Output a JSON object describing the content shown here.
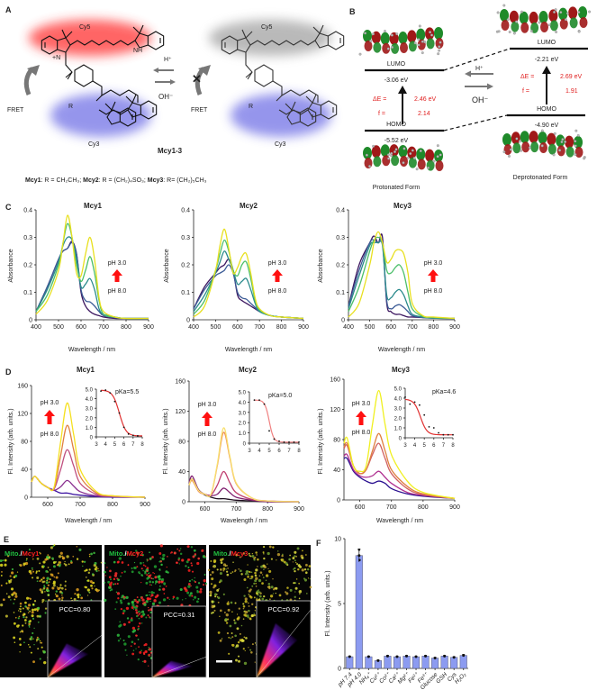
{
  "panel_labels": {
    "a": "A",
    "b": "B",
    "c": "C",
    "d": "D",
    "e": "E",
    "f": "F"
  },
  "panel_a": {
    "cy5": "Cy5",
    "cy3": "Cy3",
    "r": "R",
    "n_plus": "+N",
    "n": "N",
    "nh": "NH",
    "fret": "FRET",
    "h_plus": "H⁺",
    "oh_minus": "OH⁻",
    "mcy_name": "Mcy1-3",
    "caption": [
      {
        "name": "Mcy1",
        "text": ": R = CH₂CH₃; "
      },
      {
        "name": "Mcy2",
        "text": ": R = (CH₂)₄SO₃; "
      },
      {
        "name": "Mcy3",
        "text": ": R=  (CH₂)₅CH₃"
      }
    ],
    "colors": {
      "cy5_glow": "#ff3030",
      "cy3_glow": "#5050e0",
      "off_glow": "#808080"
    }
  },
  "panel_b": {
    "lumo": "LUMO",
    "homo": "HOMO",
    "h_plus": "H⁺",
    "oh_minus": "OH⁻",
    "protonated": {
      "label": "Protonated Form",
      "lumo_energy": "-3.06 eV",
      "homo_energy": "-5.52 eV",
      "delta_e_label": "ΔE =",
      "delta_e": "2.46 eV",
      "f_label": "f =",
      "f": "2.14"
    },
    "deprotonated": {
      "label": "Deprotonated Form",
      "lumo_energy": "-2.21 eV",
      "homo_energy": "-4.90 eV",
      "delta_e_label": "ΔE =",
      "delta_e": "2.69 eV",
      "f_label": "f =",
      "f": "1.91"
    },
    "colors": {
      "lobe_pos": "#a01818",
      "lobe_neg": "#1f8a2a",
      "values": "#e02020"
    }
  },
  "panel_c": {
    "ph_high": "pH 3.0",
    "ph_low": "pH 8.0"
  },
  "panel_d": {
    "ph_high": "pH 3.0",
    "ph_low": "pH 8.0"
  },
  "panel_e": {
    "images": [
      {
        "mito": "Mito.",
        "sep": "/",
        "probe": "Mcy1",
        "pcc": "PCC=0.80"
      },
      {
        "mito": "Mito.",
        "sep": "/",
        "probe": "Mcy2",
        "pcc": "PCC=0.31"
      },
      {
        "mito": "Mito.",
        "sep": "/",
        "probe": "Mcy3",
        "pcc": "PCC=0.92"
      }
    ],
    "colors": {
      "mito": "#20c040",
      "probe": "#ff2020"
    }
  },
  "chart_data": [
    {
      "type": "line",
      "title": "Mcy1",
      "xlabel": "Wavelength / nm",
      "ylabel": "Absorbance",
      "xlim": [
        400,
        900
      ],
      "ylim": [
        0,
        0.4
      ],
      "xticks": [
        400,
        500,
        600,
        700,
        800,
        900
      ],
      "yticks": [
        0,
        0.1,
        0.2,
        0.3,
        0.4
      ],
      "yticklabels": [
        "0",
        "0.1",
        "0.2",
        "0.3",
        "0.4"
      ],
      "x": [
        400,
        450,
        500,
        520,
        540,
        560,
        580,
        600,
        620,
        640,
        660,
        680,
        700,
        750,
        800,
        900
      ],
      "series": [
        {
          "color": "#e8e020",
          "values": [
            0.02,
            0.07,
            0.18,
            0.28,
            0.38,
            0.3,
            0.17,
            0.16,
            0.24,
            0.3,
            0.22,
            0.08,
            0.03,
            0.01,
            0.005,
            0.005
          ]
        },
        {
          "color": "#4cbf6a",
          "values": [
            0.03,
            0.09,
            0.2,
            0.28,
            0.35,
            0.3,
            0.2,
            0.14,
            0.18,
            0.23,
            0.17,
            0.07,
            0.02,
            0.01,
            0.005,
            0.005
          ]
        },
        {
          "color": "#2a8a8c",
          "values": [
            0.03,
            0.11,
            0.21,
            0.27,
            0.3,
            0.29,
            0.22,
            0.12,
            0.13,
            0.15,
            0.11,
            0.04,
            0.02,
            0.01,
            0.005,
            0.005
          ]
        },
        {
          "color": "#3b5b96",
          "values": [
            0.03,
            0.12,
            0.22,
            0.25,
            0.26,
            0.28,
            0.24,
            0.11,
            0.07,
            0.065,
            0.05,
            0.03,
            0.015,
            0.008,
            0.005,
            0.005
          ]
        },
        {
          "color": "#3d1760",
          "values": [
            0.03,
            0.12,
            0.22,
            0.25,
            0.26,
            0.285,
            0.24,
            0.1,
            0.05,
            0.03,
            0.02,
            0.015,
            0.01,
            0.005,
            0.005,
            0.005
          ]
        }
      ]
    },
    {
      "type": "line",
      "title": "Mcy2",
      "xlabel": "Wavelength / nm",
      "ylabel": "Absorbance",
      "xlim": [
        400,
        900
      ],
      "ylim": [
        0,
        0.4
      ],
      "xticks": [
        400,
        500,
        600,
        700,
        800,
        900
      ],
      "yticks": [
        0,
        0.1,
        0.2,
        0.3,
        0.4
      ],
      "yticklabels": [
        "0",
        "0.1",
        "0.2",
        "0.3",
        "0.4"
      ],
      "x": [
        400,
        450,
        500,
        520,
        540,
        560,
        580,
        600,
        620,
        640,
        660,
        680,
        700,
        750,
        800,
        900
      ],
      "series": [
        {
          "color": "#e8e020",
          "values": [
            0.01,
            0.05,
            0.18,
            0.27,
            0.33,
            0.26,
            0.17,
            0.19,
            0.23,
            0.24,
            0.17,
            0.08,
            0.04,
            0.015,
            0.01,
            0.005
          ]
        },
        {
          "color": "#4cbf6a",
          "values": [
            0.02,
            0.07,
            0.18,
            0.24,
            0.29,
            0.25,
            0.18,
            0.16,
            0.2,
            0.21,
            0.15,
            0.07,
            0.035,
            0.015,
            0.01,
            0.005
          ]
        },
        {
          "color": "#2a8a8c",
          "values": [
            0.03,
            0.09,
            0.17,
            0.21,
            0.25,
            0.22,
            0.18,
            0.13,
            0.14,
            0.15,
            0.11,
            0.06,
            0.03,
            0.015,
            0.01,
            0.005
          ]
        },
        {
          "color": "#3b5b96",
          "values": [
            0.04,
            0.11,
            0.16,
            0.17,
            0.18,
            0.2,
            0.17,
            0.1,
            0.08,
            0.075,
            0.06,
            0.045,
            0.03,
            0.015,
            0.01,
            0.005
          ]
        },
        {
          "color": "#3d1760",
          "values": [
            0.04,
            0.12,
            0.17,
            0.19,
            0.2,
            0.22,
            0.18,
            0.09,
            0.07,
            0.06,
            0.05,
            0.04,
            0.03,
            0.015,
            0.01,
            0.005
          ]
        }
      ]
    },
    {
      "type": "line",
      "title": "Mcy3",
      "xlabel": "Wavelength / nm",
      "ylabel": "Absorbance",
      "xlim": [
        400,
        900
      ],
      "ylim": [
        0,
        0.4
      ],
      "xticks": [
        400,
        500,
        600,
        700,
        800,
        900
      ],
      "yticks": [
        0,
        0.1,
        0.2,
        0.3,
        0.4
      ],
      "yticklabels": [
        "0",
        "0.1",
        "0.2",
        "0.3",
        "0.4"
      ],
      "x": [
        400,
        450,
        500,
        520,
        540,
        560,
        580,
        600,
        620,
        640,
        660,
        680,
        700,
        750,
        800,
        900
      ],
      "series": [
        {
          "color": "#e8e020",
          "values": [
            0.01,
            0.06,
            0.2,
            0.28,
            0.32,
            0.28,
            0.21,
            0.22,
            0.25,
            0.255,
            0.24,
            0.17,
            0.06,
            0.015,
            0.01,
            0.005
          ]
        },
        {
          "color": "#4cbf6a",
          "values": [
            0.03,
            0.12,
            0.25,
            0.29,
            0.3,
            0.28,
            0.18,
            0.17,
            0.19,
            0.2,
            0.17,
            0.1,
            0.04,
            0.012,
            0.008,
            0.005
          ]
        },
        {
          "color": "#2a8a8c",
          "values": [
            0.04,
            0.16,
            0.27,
            0.28,
            0.28,
            0.27,
            0.09,
            0.08,
            0.1,
            0.11,
            0.09,
            0.05,
            0.02,
            0.01,
            0.006,
            0.005
          ]
        },
        {
          "color": "#3b5b96",
          "values": [
            0.05,
            0.18,
            0.28,
            0.29,
            0.28,
            0.28,
            0.07,
            0.04,
            0.05,
            0.055,
            0.045,
            0.03,
            0.015,
            0.008,
            0.006,
            0.005
          ]
        },
        {
          "color": "#3d1760",
          "values": [
            0.05,
            0.2,
            0.28,
            0.305,
            0.28,
            0.3,
            0.06,
            0.03,
            0.02,
            0.02,
            0.015,
            0.01,
            0.01,
            0.008,
            0.006,
            0.005
          ]
        }
      ]
    },
    {
      "type": "line",
      "title": "Mcy1",
      "xlabel": "Wavelength / nm",
      "ylabel": "Fl. Intensity (arb. units.)",
      "xlim": [
        550,
        900
      ],
      "ylim": [
        0,
        160
      ],
      "xticks": [
        600,
        700,
        800,
        900
      ],
      "yticks": [
        0,
        40,
        80,
        120,
        160
      ],
      "yticklabels": [
        "0",
        "40",
        "80",
        "120",
        "160"
      ],
      "x": [
        550,
        560,
        580,
        600,
        620,
        640,
        660,
        680,
        700,
        750,
        800,
        900
      ],
      "series": [
        {
          "color": "#f5e020",
          "values": [
            22,
            30,
            20,
            14,
            15,
            80,
            135,
            90,
            40,
            8,
            2,
            0
          ]
        },
        {
          "color": "#e08040",
          "values": [
            22,
            30,
            20,
            14,
            13,
            60,
            103,
            68,
            30,
            6,
            2,
            0
          ]
        },
        {
          "color": "#c05080",
          "values": [
            22,
            30,
            20,
            14,
            12,
            40,
            68,
            45,
            20,
            4,
            1,
            0
          ]
        },
        {
          "color": "#8a3090",
          "values": [
            22,
            30,
            20,
            14,
            10,
            15,
            24,
            16,
            8,
            2,
            1,
            0
          ]
        },
        {
          "color": "#3a10a0",
          "values": [
            22,
            30,
            20,
            14,
            10,
            6,
            6,
            4,
            3,
            1,
            0,
            0
          ]
        }
      ]
    },
    {
      "type": "line",
      "title": "Mcy2",
      "xlabel": "Wavelength / nm",
      "ylabel": "Fl. Intensity (arb. units.)",
      "xlim": [
        550,
        900
      ],
      "ylim": [
        0,
        160
      ],
      "xticks": [
        600,
        700,
        800,
        900
      ],
      "yticks": [
        0,
        40,
        80,
        120,
        160
      ],
      "yticklabels": [
        "0",
        "40",
        "80",
        "120",
        "160"
      ],
      "x": [
        550,
        560,
        580,
        600,
        620,
        640,
        660,
        680,
        700,
        750,
        800,
        900
      ],
      "series": [
        {
          "color": "#f8e070",
          "values": [
            22,
            30,
            15,
            10,
            10,
            50,
            98,
            60,
            25,
            5,
            1,
            0
          ]
        },
        {
          "color": "#f09050",
          "values": [
            22,
            28,
            14,
            10,
            10,
            48,
            92,
            58,
            24,
            5,
            1,
            0
          ]
        },
        {
          "color": "#c04070",
          "values": [
            22,
            30,
            14,
            10,
            9,
            22,
            40,
            25,
            12,
            3,
            1,
            0
          ]
        },
        {
          "color": "#802070",
          "values": [
            25,
            34,
            16,
            10,
            8,
            10,
            18,
            12,
            6,
            2,
            0,
            0
          ]
        },
        {
          "color": "#201020",
          "values": [
            22,
            30,
            16,
            9,
            6,
            4,
            4,
            3,
            2,
            1,
            0,
            0
          ]
        }
      ]
    },
    {
      "type": "line",
      "title": "Mcy3",
      "xlabel": "Wavelength / nm",
      "ylabel": "Fl. Intensity (arb. units.)",
      "xlim": [
        550,
        900
      ],
      "ylim": [
        0,
        160
      ],
      "xticks": [
        600,
        700,
        800,
        900
      ],
      "yticks": [
        0,
        40,
        80,
        120,
        160
      ],
      "yticklabels": [
        "0",
        "40",
        "80",
        "120",
        "160"
      ],
      "x": [
        550,
        560,
        580,
        600,
        620,
        640,
        660,
        680,
        700,
        750,
        800,
        900
      ],
      "series": [
        {
          "color": "#f0f020",
          "values": [
            75,
            82,
            45,
            38,
            45,
            100,
            145,
            100,
            60,
            25,
            10,
            2
          ]
        },
        {
          "color": "#e08040",
          "values": [
            70,
            75,
            45,
            35,
            40,
            65,
            88,
            65,
            40,
            18,
            8,
            2
          ]
        },
        {
          "color": "#d06060",
          "values": [
            68,
            72,
            45,
            35,
            40,
            60,
            75,
            55,
            35,
            15,
            7,
            2
          ]
        },
        {
          "color": "#b03090",
          "values": [
            58,
            60,
            40,
            32,
            30,
            32,
            38,
            30,
            22,
            10,
            6,
            2
          ]
        },
        {
          "color": "#2a1090",
          "values": [
            55,
            55,
            38,
            30,
            25,
            22,
            25,
            22,
            15,
            8,
            5,
            2
          ]
        }
      ]
    },
    {
      "type": "scatter",
      "annotation": "pKa=5.5",
      "pKa": 5.5,
      "xlim": [
        3,
        8
      ],
      "ylim": [
        0,
        5
      ],
      "xticks": [
        3,
        4,
        5,
        6,
        7,
        8
      ],
      "yticks": [
        0,
        1,
        2,
        3,
        4,
        5
      ],
      "yticklabels": [
        "0",
        "1.0",
        "2.0",
        "3.0",
        "4.0",
        "5.0"
      ],
      "x": [
        3.5,
        4,
        4.5,
        5,
        5.5,
        6,
        6.5,
        7,
        7.5
      ],
      "y": [
        4.8,
        4.9,
        4.6,
        3.7,
        2.5,
        1.0,
        0.3,
        0.15,
        0.1
      ],
      "fit_color": "#e03030"
    },
    {
      "type": "scatter",
      "annotation": "pKa=5.0",
      "pKa": 5.0,
      "xlim": [
        3,
        8
      ],
      "ylim": [
        0,
        5
      ],
      "xticks": [
        3,
        4,
        5,
        6,
        7,
        8
      ],
      "yticks": [
        0,
        1,
        2,
        3,
        4,
        5
      ],
      "yticklabels": [
        "0",
        "1.0",
        "2.0",
        "3.0",
        "4.0",
        "5.0"
      ],
      "x": [
        3.5,
        4,
        4.5,
        5,
        5.5,
        6,
        6.5,
        7,
        7.5,
        8
      ],
      "y": [
        4.2,
        4.2,
        3.8,
        1.2,
        0.4,
        0.2,
        0.1,
        0.1,
        0.1,
        0.1
      ],
      "fit_color": "#f08080"
    },
    {
      "type": "scatter",
      "annotation": "pKa=4.6",
      "pKa": 4.6,
      "xlim": [
        3,
        8
      ],
      "ylim": [
        0,
        5
      ],
      "xticks": [
        3,
        4,
        5,
        6,
        7,
        8
      ],
      "yticks": [
        0,
        1,
        2,
        3,
        4,
        5
      ],
      "yticklabels": [
        "0",
        "1.0",
        "2.0",
        "3.0",
        "4.0",
        "5.0"
      ],
      "x": [
        3,
        3.5,
        4,
        4.5,
        5,
        5.5,
        6,
        6.5,
        7,
        7.5,
        8
      ],
      "y": [
        4.1,
        3.4,
        3.6,
        3.3,
        2.3,
        1.1,
        1.0,
        0.5,
        0.3,
        0.3,
        0.3
      ],
      "fit_color": "#e03030"
    },
    {
      "type": "bar",
      "ylabel": "Fl. Intensity (arb. units.)",
      "ylim": [
        0,
        10
      ],
      "yticks": [
        0,
        5,
        10
      ],
      "yticklabels": [
        "0",
        "5",
        "10"
      ],
      "categories": [
        "pH 7.4",
        "pH 4.0",
        "NH₄⁺",
        "Cu²⁺",
        "Co²⁺",
        "Ca²⁺",
        "Mg²⁺",
        "Fe²⁺",
        "Fe³⁺",
        "Glucose",
        "GSH",
        "Cys",
        "H₂O₂"
      ],
      "values": [
        0.9,
        8.7,
        0.9,
        0.6,
        0.95,
        0.9,
        0.95,
        0.9,
        0.95,
        0.8,
        0.95,
        0.85,
        1.0
      ],
      "errors": [
        0.05,
        0.5,
        0.05,
        0.05,
        0.05,
        0.05,
        0.05,
        0.05,
        0.05,
        0.05,
        0.05,
        0.05,
        0.08
      ],
      "bar_color": "#8c9bf0"
    }
  ]
}
